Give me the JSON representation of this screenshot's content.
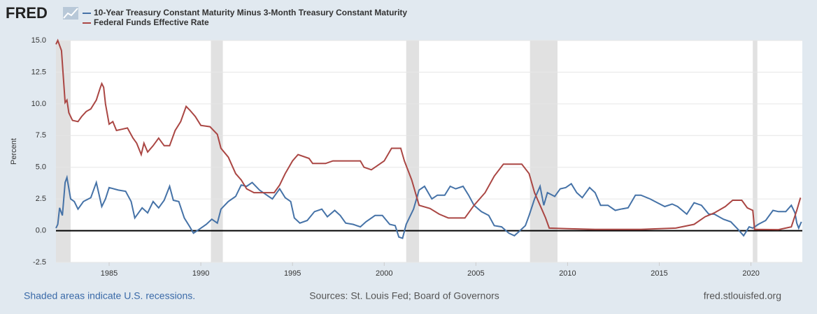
{
  "header": {
    "logo": "FRED"
  },
  "footer": {
    "left": "Shaded areas indicate U.S. recessions.",
    "center": "Sources: St. Louis Fed; Board of Governors",
    "right": "fred.stlouisfed.org"
  },
  "chart_data": {
    "type": "line",
    "ylabel": "Percent",
    "grid": true,
    "legend": "top-left",
    "xlim": [
      1982.1,
      2022.8
    ],
    "xticks": [
      1985,
      1990,
      1995,
      2000,
      2005,
      2010,
      2015,
      2020
    ],
    "ylim": [
      -2.5,
      15
    ],
    "yticks": [
      {
        "value": -2.5,
        "label": "-2.5"
      },
      {
        "value": 0,
        "label": "0.0"
      },
      {
        "value": 2.5,
        "label": "2.5"
      },
      {
        "value": 5,
        "label": "5.0"
      },
      {
        "value": 7.5,
        "label": "7.5"
      },
      {
        "value": 10,
        "label": "10.0"
      },
      {
        "value": 12.5,
        "label": "12.5"
      },
      {
        "value": 15,
        "label": "15.0"
      }
    ],
    "recessions": [
      [
        1981.5,
        1982.9
      ],
      [
        1990.55,
        1991.2
      ],
      [
        2001.2,
        2001.9
      ],
      [
        2007.95,
        2009.45
      ],
      [
        2020.1,
        2020.35
      ]
    ],
    "series": [
      {
        "name": "10-Year Treasury Constant Maturity Minus 3-Month Treasury Constant Maturity",
        "color": "#4572a7",
        "x": [
          1982.1,
          1982.2,
          1982.3,
          1982.45,
          1982.6,
          1982.7,
          1982.9,
          1983.1,
          1983.3,
          1983.6,
          1984.0,
          1984.3,
          1984.6,
          1984.8,
          1985.0,
          1985.5,
          1985.9,
          1986.2,
          1986.4,
          1986.8,
          1987.1,
          1987.4,
          1987.7,
          1988.0,
          1988.3,
          1988.5,
          1988.8,
          1989.1,
          1989.4,
          1989.6,
          1989.9,
          1990.3,
          1990.6,
          1990.9,
          1991.1,
          1991.5,
          1991.9,
          1992.2,
          1992.5,
          1992.8,
          1993.2,
          1993.6,
          1993.9,
          1994.3,
          1994.6,
          1994.9,
          1995.1,
          1995.4,
          1995.8,
          1996.2,
          1996.6,
          1996.9,
          1997.3,
          1997.6,
          1997.9,
          1998.3,
          1998.7,
          1999.0,
          1999.5,
          1999.9,
          2000.3,
          2000.6,
          2000.8,
          2001.0,
          2001.2,
          2001.6,
          2001.9,
          2002.2,
          2002.6,
          2002.9,
          2003.3,
          2003.6,
          2003.9,
          2004.3,
          2004.6,
          2004.9,
          2005.3,
          2005.7,
          2006.0,
          2006.4,
          2006.8,
          2007.1,
          2007.4,
          2007.7,
          2007.9,
          2008.2,
          2008.5,
          2008.7,
          2008.9,
          2009.3,
          2009.6,
          2009.9,
          2010.2,
          2010.5,
          2010.8,
          2011.2,
          2011.5,
          2011.8,
          2012.2,
          2012.6,
          2012.9,
          2013.3,
          2013.7,
          2014.0,
          2014.5,
          2014.9,
          2015.3,
          2015.7,
          2016.0,
          2016.5,
          2016.9,
          2017.3,
          2017.7,
          2018.0,
          2018.5,
          2018.9,
          2019.3,
          2019.6,
          2019.9,
          2020.1,
          2020.4,
          2020.8,
          2021.2,
          2021.5,
          2021.9,
          2022.2,
          2022.4,
          2022.5,
          2022.6,
          2022.75
        ],
        "values": [
          0.2,
          0.5,
          1.8,
          1.2,
          3.8,
          4.2,
          2.5,
          2.3,
          1.7,
          2.3,
          2.6,
          3.8,
          1.9,
          2.5,
          3.4,
          3.2,
          3.1,
          2.3,
          1.0,
          1.8,
          1.4,
          2.3,
          1.8,
          2.4,
          3.5,
          2.4,
          2.3,
          1.0,
          0.3,
          -0.2,
          0.1,
          0.5,
          0.9,
          0.6,
          1.7,
          2.3,
          2.7,
          3.6,
          3.5,
          3.8,
          3.2,
          2.8,
          2.5,
          3.3,
          2.6,
          2.3,
          1.0,
          0.6,
          0.8,
          1.5,
          1.7,
          1.1,
          1.6,
          1.2,
          0.6,
          0.5,
          0.3,
          0.7,
          1.2,
          1.2,
          0.5,
          0.4,
          -0.5,
          -0.6,
          0.5,
          1.7,
          3.2,
          3.5,
          2.5,
          2.8,
          2.8,
          3.5,
          3.3,
          3.5,
          2.8,
          2.0,
          1.5,
          1.2,
          0.4,
          0.3,
          -0.2,
          -0.4,
          0.0,
          0.4,
          1.2,
          2.5,
          3.5,
          2.0,
          3.0,
          2.7,
          3.3,
          3.4,
          3.7,
          3.0,
          2.6,
          3.4,
          3.0,
          2.0,
          2.0,
          1.6,
          1.7,
          1.8,
          2.8,
          2.8,
          2.5,
          2.2,
          1.9,
          2.1,
          1.9,
          1.3,
          2.2,
          2.0,
          1.3,
          1.3,
          0.9,
          0.7,
          0.1,
          -0.4,
          0.3,
          0.2,
          0.5,
          0.8,
          1.6,
          1.5,
          1.5,
          2.0,
          1.4,
          0.6,
          0.2,
          0.7
        ]
      },
      {
        "name": "Federal Funds Effective Rate",
        "color": "#aa4643",
        "x": [
          1982.1,
          1982.2,
          1982.4,
          1982.6,
          1982.7,
          1982.8,
          1983.0,
          1983.3,
          1983.5,
          1983.75,
          1984.0,
          1984.3,
          1984.5,
          1984.6,
          1984.7,
          1984.8,
          1985.0,
          1985.2,
          1985.4,
          1985.7,
          1986.0,
          1986.3,
          1986.5,
          1986.75,
          1986.9,
          1987.1,
          1987.4,
          1987.7,
          1988.0,
          1988.3,
          1988.6,
          1988.9,
          1989.2,
          1989.4,
          1989.7,
          1990.0,
          1990.5,
          1990.9,
          1991.1,
          1991.5,
          1991.9,
          1992.2,
          1992.5,
          1992.9,
          1993.5,
          1994.0,
          1994.3,
          1994.6,
          1995.0,
          1995.3,
          1995.9,
          1996.1,
          1996.8,
          1997.2,
          1998.0,
          1998.7,
          1998.9,
          1999.3,
          1999.7,
          2000.0,
          2000.4,
          2000.9,
          2001.1,
          2001.5,
          2001.9,
          2002.5,
          2003.0,
          2003.5,
          2004.4,
          2004.9,
          2005.5,
          2006.0,
          2006.5,
          2007.5,
          2007.9,
          2008.2,
          2008.5,
          2008.8,
          2009.0,
          2010.0,
          2011.5,
          2014.0,
          2015.9,
          2016.9,
          2017.5,
          2018.0,
          2018.6,
          2019.0,
          2019.5,
          2019.8,
          2020.1,
          2020.2,
          2021.5,
          2022.2,
          2022.5,
          2022.7
        ],
        "values": [
          14.7,
          15.0,
          14.2,
          10.1,
          10.3,
          9.3,
          8.7,
          8.6,
          9.0,
          9.4,
          9.6,
          10.3,
          11.2,
          11.6,
          11.3,
          10.0,
          8.4,
          8.6,
          7.9,
          8.0,
          8.1,
          7.3,
          6.9,
          6.0,
          6.9,
          6.2,
          6.7,
          7.3,
          6.7,
          6.7,
          7.9,
          8.6,
          9.8,
          9.5,
          9.0,
          8.3,
          8.2,
          7.6,
          6.5,
          5.8,
          4.5,
          4.0,
          3.3,
          3.0,
          3.0,
          3.0,
          3.6,
          4.5,
          5.5,
          6.0,
          5.7,
          5.3,
          5.3,
          5.5,
          5.5,
          5.5,
          5.0,
          4.8,
          5.2,
          5.5,
          6.5,
          6.5,
          5.5,
          4.0,
          2.0,
          1.75,
          1.3,
          1.0,
          1.0,
          2.0,
          3.0,
          4.3,
          5.25,
          5.25,
          4.5,
          3.0,
          2.0,
          1.0,
          0.2,
          0.15,
          0.1,
          0.1,
          0.2,
          0.5,
          1.1,
          1.4,
          1.9,
          2.4,
          2.4,
          1.8,
          1.6,
          0.1,
          0.08,
          0.3,
          1.6,
          2.6
        ]
      }
    ]
  }
}
